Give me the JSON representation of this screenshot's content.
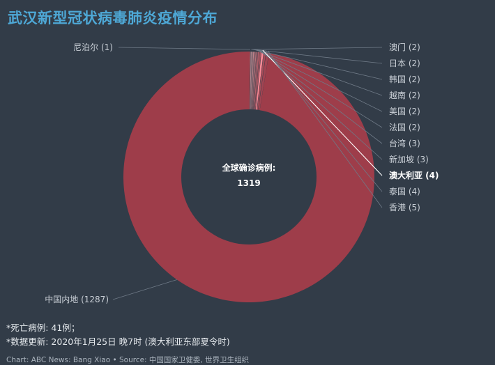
{
  "title": "武汉新型冠状病毒肺炎疫情分布",
  "chart_data": {
    "type": "pie",
    "style": "donut",
    "center_title": "全球确诊病例:",
    "center_value": "1319",
    "slices": [
      {
        "name": "中国内地",
        "value": 1287,
        "label": "中国内地 (1287)",
        "color": "#9e3d4a"
      },
      {
        "name": "香港",
        "value": 5,
        "label": "香港 (5)",
        "color": "#a24452"
      },
      {
        "name": "泰国",
        "value": 4,
        "label": "泰国 (4)",
        "color": "#a64c59"
      },
      {
        "name": "澳大利亚",
        "value": 4,
        "label": "澳大利亚 (4)",
        "color": "#ff8a96",
        "highlight": true
      },
      {
        "name": "新加坡",
        "value": 3,
        "label": "新加坡 (3)",
        "color": "#aa5561"
      },
      {
        "name": "台湾",
        "value": 3,
        "label": "台湾 (3)",
        "color": "#ae5e69"
      },
      {
        "name": "法国",
        "value": 2,
        "label": "法国 (2)",
        "color": "#b26771"
      },
      {
        "name": "美国",
        "value": 2,
        "label": "美国 (2)",
        "color": "#b67079"
      },
      {
        "name": "越南",
        "value": 2,
        "label": "越南 (2)",
        "color": "#ba7982"
      },
      {
        "name": "韩国",
        "value": 2,
        "label": "韩国 (2)",
        "color": "#be828a"
      },
      {
        "name": "日本",
        "value": 2,
        "label": "日本 (2)",
        "color": "#c28b93"
      },
      {
        "name": "澳门",
        "value": 2,
        "label": "澳门 (2)",
        "color": "#c6949b"
      },
      {
        "name": "尼泊尔",
        "value": 1,
        "label": "尼泊尔 (1)",
        "color": "#ca9da3"
      }
    ]
  },
  "notes": {
    "line1": "*死亡病例: 41例；",
    "line2": "*数据更新: 2020年1月25日 晚7时 (澳大利亚东部夏令时)"
  },
  "source": "Chart: ABC News: Bang Xiao • Source: 中国国家卫健委, 世界卫生组织"
}
